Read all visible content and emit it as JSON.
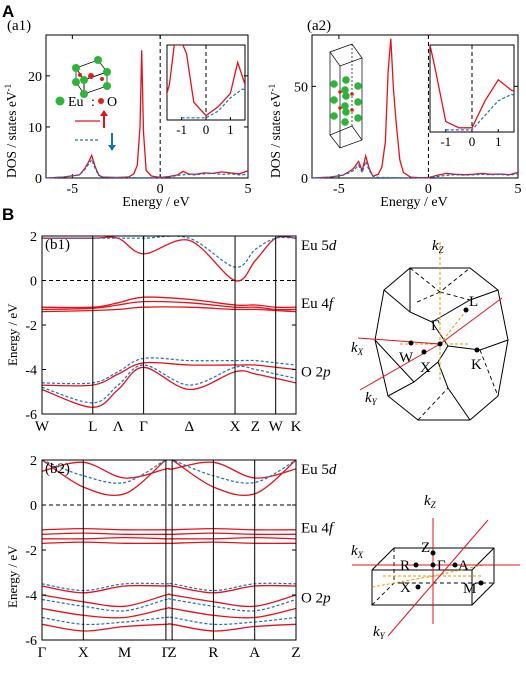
{
  "panel_labels": {
    "A": "A",
    "B": "B"
  },
  "chart_data": [
    {
      "id": "a1",
      "type": "line",
      "label": "(a1)",
      "xlabel": "Energy / eV",
      "ylabel": "DOS / states eV",
      "ylabel_sup": "-1",
      "xlim": [
        -6.5,
        5
      ],
      "ylim": [
        0,
        28
      ],
      "xticks": [
        -5,
        0,
        5
      ],
      "yticks": [
        0,
        10,
        20
      ],
      "legend": {
        "eu": "Eu",
        "o": "O"
      },
      "series": [
        {
          "name": "up",
          "x": [
            -6.5,
            -5.5,
            -4.6,
            -4.3,
            -4.1,
            -3.9,
            -3.7,
            -3.5,
            -3.3,
            -2.5,
            -1.8,
            -1.5,
            -1.3,
            -1.15,
            -1.05,
            -0.95,
            -0.8,
            -0.5,
            0,
            0.5,
            1,
            1.3,
            1.6,
            2,
            2.5,
            3,
            3.5,
            4,
            4.5,
            5
          ],
          "y": [
            0,
            0.2,
            0.6,
            1.8,
            3.0,
            4.4,
            2.2,
            0.6,
            0.2,
            0.1,
            0.2,
            0.8,
            2.5,
            10,
            25,
            9,
            1.5,
            0.4,
            0.1,
            0.3,
            0.6,
            1.3,
            0.8,
            0.7,
            1.0,
            0.9,
            1.2,
            1.0,
            0.8,
            1.4
          ]
        },
        {
          "name": "down",
          "x": [
            -6.5,
            -5.5,
            -4.6,
            -4.3,
            -4.1,
            -3.9,
            -3.7,
            -3.5,
            -3.3,
            -2.5,
            -1,
            0,
            0.5,
            1,
            1.5,
            2,
            2.5,
            3,
            3.5,
            4,
            4.5,
            5
          ],
          "y": [
            0,
            0.2,
            0.6,
            1.6,
            2.6,
            3.6,
            1.8,
            0.5,
            0.2,
            0.1,
            0.05,
            0.05,
            0.2,
            0.5,
            0.7,
            0.6,
            0.8,
            0.9,
            0.7,
            0.8,
            0.6,
            0.7
          ]
        }
      ],
      "inset": {
        "xlim": [
          -1.6,
          1.6
        ],
        "xticks": [
          -1,
          0,
          1
        ]
      }
    },
    {
      "id": "a2",
      "type": "line",
      "label": "(a2)",
      "xlabel": "Energy / eV",
      "ylabel": "DOS / states eV",
      "ylabel_sup": "-1",
      "xlim": [
        -6.5,
        5
      ],
      "ylim": [
        0,
        78
      ],
      "xticks": [
        -5,
        0,
        5
      ],
      "yticks": [
        0,
        50
      ],
      "series": [
        {
          "name": "up",
          "x": [
            -6.5,
            -5.5,
            -4.8,
            -4.5,
            -4.2,
            -3.9,
            -3.7,
            -3.5,
            -3.3,
            -3.1,
            -2.8,
            -2.6,
            -2.4,
            -2.25,
            -2.1,
            -1.95,
            -1.8,
            -1.6,
            -1.4,
            -1,
            -0.5,
            0,
            0.5,
            1,
            1.5,
            2,
            2.5,
            3,
            3.5,
            4,
            4.5,
            5
          ],
          "y": [
            0,
            0.5,
            1.5,
            3,
            5,
            9,
            4,
            12,
            5,
            1,
            2,
            6,
            20,
            58,
            76,
            48,
            30,
            10,
            3,
            0.5,
            0.2,
            0.2,
            1.5,
            2.5,
            2,
            1.8,
            2,
            2.5,
            2,
            2.2,
            1.8,
            3
          ]
        },
        {
          "name": "down",
          "x": [
            -6.5,
            -5.5,
            -4.8,
            -4.5,
            -4.2,
            -3.9,
            -3.7,
            -3.5,
            -3.3,
            -3.1,
            -2.8,
            -1,
            0,
            0.5,
            1,
            1.5,
            2,
            2.5,
            3,
            3.5,
            4,
            4.5,
            5
          ],
          "y": [
            0,
            0.5,
            1.5,
            2.5,
            4,
            7,
            3,
            9,
            4,
            1,
            0.3,
            0.1,
            0.1,
            0.8,
            1.5,
            1.8,
            1.6,
            1.7,
            2,
            1.8,
            1.9,
            1.6,
            2.2
          ]
        }
      ],
      "inset": {
        "xlim": [
          -1.6,
          1.6
        ],
        "xticks": [
          -1,
          0,
          1
        ]
      }
    },
    {
      "id": "b1",
      "type": "line",
      "label": "(b1)",
      "ylabel": "Energy / eV",
      "ylim": [
        -6,
        2
      ],
      "yticks": [
        2,
        0,
        -2,
        -4,
        -6
      ],
      "kpoints": [
        "W",
        "L",
        "Λ",
        "Γ",
        "Δ",
        "X",
        "Z",
        "W",
        "K"
      ],
      "kpos": [
        0,
        1,
        1.5,
        2,
        2.9,
        3.8,
        4.2,
        4.6,
        5
      ],
      "vlines": [
        1,
        2,
        3.8,
        4.6
      ],
      "band_labels": [
        {
          "text": "Eu 5",
          "sub": "d",
          "y": 1.6
        },
        {
          "text": "Eu 4",
          "sub": "f",
          "y": -1.0
        },
        {
          "text": "O 2",
          "sub": "p",
          "y": -4.1
        }
      ],
      "bands": [
        {
          "spin": "up",
          "y": [
            1.9,
            1.9,
            1.9,
            1.2,
            1.8,
            0.0,
            0.9,
            1.9,
            1.9
          ]
        },
        {
          "spin": "down",
          "y": [
            1.9,
            1.9,
            1.9,
            1.9,
            1.9,
            0.6,
            1.4,
            1.9,
            1.9
          ]
        },
        {
          "spin": "up",
          "y": [
            -1.2,
            -1.2,
            -1.0,
            -0.75,
            -0.85,
            -1.1,
            -1.1,
            -1.2,
            -1.2
          ]
        },
        {
          "spin": "up",
          "y": [
            -1.3,
            -1.25,
            -1.1,
            -0.95,
            -1.0,
            -1.2,
            -1.2,
            -1.3,
            -1.3
          ]
        },
        {
          "spin": "up",
          "y": [
            -1.4,
            -1.35,
            -1.3,
            -1.2,
            -1.2,
            -1.3,
            -1.3,
            -1.35,
            -1.4
          ]
        },
        {
          "spin": "up",
          "y": [
            -4.7,
            -4.7,
            -4.2,
            -3.7,
            -3.8,
            -3.8,
            -3.8,
            -3.9,
            -4.0
          ]
        },
        {
          "spin": "up",
          "y": [
            -4.9,
            -5.7,
            -4.9,
            -3.9,
            -4.9,
            -4.1,
            -4.2,
            -4.4,
            -4.6
          ]
        },
        {
          "spin": "down",
          "y": [
            -4.6,
            -4.6,
            -4.1,
            -3.5,
            -3.6,
            -3.6,
            -3.6,
            -3.7,
            -3.8
          ]
        },
        {
          "spin": "down",
          "y": [
            -4.8,
            -5.5,
            -4.7,
            -3.8,
            -4.7,
            -3.9,
            -4.0,
            -4.2,
            -4.4
          ]
        }
      ]
    },
    {
      "id": "b2",
      "type": "line",
      "label": "(b2)",
      "ylabel": "Energy / eV",
      "ylim": [
        -6,
        2
      ],
      "yticks": [
        2,
        0,
        -2,
        -4,
        -6
      ],
      "kpoints": [
        "Γ",
        "X",
        "M",
        "Γ",
        "Z",
        "R",
        "A",
        "Z"
      ],
      "kpos": [
        0,
        1,
        2,
        3,
        3.15,
        4.15,
        5.15,
        6.15
      ],
      "vlines": [
        1,
        3,
        3.15,
        4.15,
        5.15
      ],
      "band_labels": [
        {
          "text": "Eu 5",
          "sub": "d",
          "y": 1.6
        },
        {
          "text": "Eu 4",
          "sub": "f",
          "y": -1.0
        },
        {
          "text": "O 2",
          "sub": "p",
          "y": -4.1
        }
      ],
      "bands": [
        {
          "spin": "up",
          "y": [
            2.0,
            0.8,
            0.5,
            2.0,
            2.0,
            0.8,
            0.5,
            2.0
          ]
        },
        {
          "spin": "up",
          "y": [
            1.5,
            1.9,
            1.2,
            1.6,
            1.6,
            1.9,
            1.2,
            1.6
          ]
        },
        {
          "spin": "down",
          "y": [
            2.0,
            1.3,
            1.0,
            2.0,
            2.0,
            1.3,
            1.0,
            2.0
          ]
        },
        {
          "spin": "up",
          "y": [
            -1.1,
            -1.05,
            -1.1,
            -1.1,
            -1.1,
            -1.05,
            -1.1,
            -1.1
          ]
        },
        {
          "spin": "up",
          "y": [
            -1.3,
            -1.25,
            -1.3,
            -1.3,
            -1.3,
            -1.25,
            -1.3,
            -1.3
          ]
        },
        {
          "spin": "up",
          "y": [
            -1.5,
            -1.5,
            -1.45,
            -1.5,
            -1.5,
            -1.5,
            -1.45,
            -1.5
          ]
        },
        {
          "spin": "up",
          "y": [
            -1.7,
            -1.65,
            -1.7,
            -1.7,
            -1.7,
            -1.65,
            -1.7,
            -1.7
          ]
        },
        {
          "spin": "up",
          "y": [
            -3.6,
            -3.9,
            -3.6,
            -3.6,
            -3.6,
            -3.9,
            -3.6,
            -3.6
          ]
        },
        {
          "spin": "up",
          "y": [
            -4.0,
            -4.3,
            -4.5,
            -4.0,
            -4.0,
            -4.3,
            -4.5,
            -4.0
          ]
        },
        {
          "spin": "up",
          "y": [
            -4.6,
            -4.9,
            -5.0,
            -4.6,
            -4.6,
            -4.9,
            -5.0,
            -4.6
          ]
        },
        {
          "spin": "up",
          "y": [
            -5.3,
            -5.6,
            -5.4,
            -5.3,
            -5.3,
            -5.6,
            -5.4,
            -5.3
          ]
        },
        {
          "spin": "down",
          "y": [
            -3.5,
            -3.8,
            -3.5,
            -3.5,
            -3.5,
            -3.8,
            -3.5,
            -3.5
          ]
        },
        {
          "spin": "down",
          "y": [
            -4.2,
            -4.5,
            -4.7,
            -4.2,
            -4.2,
            -4.5,
            -4.7,
            -4.2
          ]
        },
        {
          "spin": "down",
          "y": [
            -5.0,
            -5.3,
            -5.2,
            -5.0,
            -5.0,
            -5.3,
            -5.2,
            -5.0
          ]
        }
      ]
    }
  ],
  "bz1": {
    "labels": {
      "kz": "k",
      "kz_sub": "Z",
      "kx": "k",
      "kx_sub": "X",
      "ky": "k",
      "ky_sub": "Y",
      "L": "L",
      "G": "Γ",
      "W": "W",
      "X": "X",
      "K": "K"
    }
  },
  "bz2": {
    "labels": {
      "kz": "k",
      "kz_sub": "Z",
      "kx": "k",
      "kx_sub": "X",
      "ky": "k",
      "ky_sub": "Y",
      "Z": "Z",
      "R": "R",
      "G": "Γ",
      "A": "A",
      "X": "X",
      "M": "M"
    }
  }
}
